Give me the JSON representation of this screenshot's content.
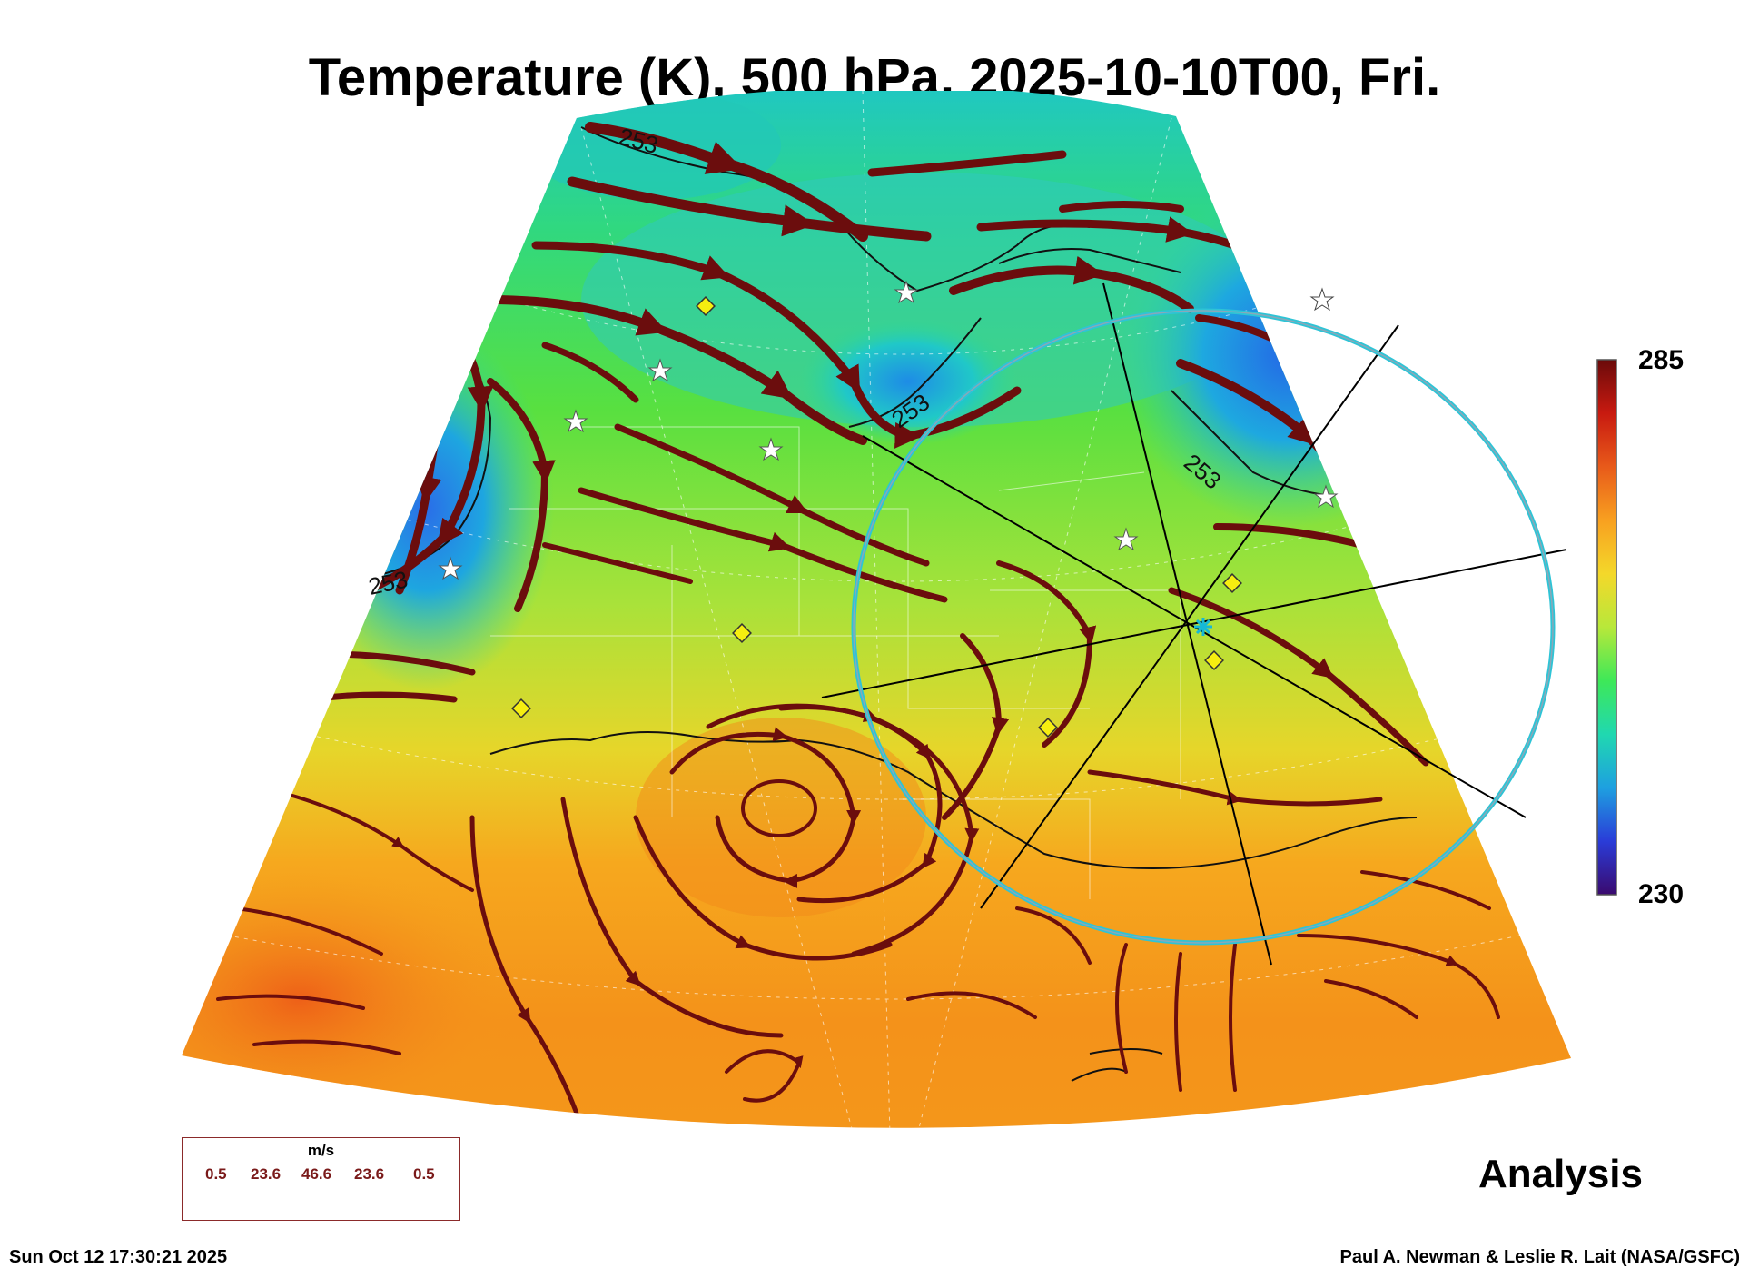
{
  "title": "Temperature (K), 500 hPa, 2025-10-10T00, Fri.",
  "colorbar": {
    "max_label": "285",
    "min_label": "230",
    "stops": [
      "#3a0a6e",
      "#2a3cd8",
      "#1ea0e0",
      "#20d8b0",
      "#3ee858",
      "#b8e83a",
      "#f4d82a",
      "#f8a020",
      "#e85a1a",
      "#c81a10",
      "#6a0a0a"
    ]
  },
  "contour_labels": [
    "253",
    "253",
    "253",
    "253"
  ],
  "mode_label": "Analysis",
  "wind_legend": {
    "unit": "m/s",
    "values": [
      "0.5",
      "23.6",
      "46.6",
      "23.6",
      "0.5"
    ]
  },
  "footer": {
    "timestamp": "Sun Oct 12 17:30:21 2025",
    "credit": "Paul A. Newman & Leslie R. Lait (NASA/GSFC)"
  },
  "colors": {
    "streamline": "#6b0d0d",
    "contour": "#111111",
    "ring": "#2ec4d6",
    "station_marker": "#f6ee10"
  },
  "icons": {
    "station": "diamond-marker",
    "site": "star-marker",
    "center": "asterisk-marker"
  }
}
